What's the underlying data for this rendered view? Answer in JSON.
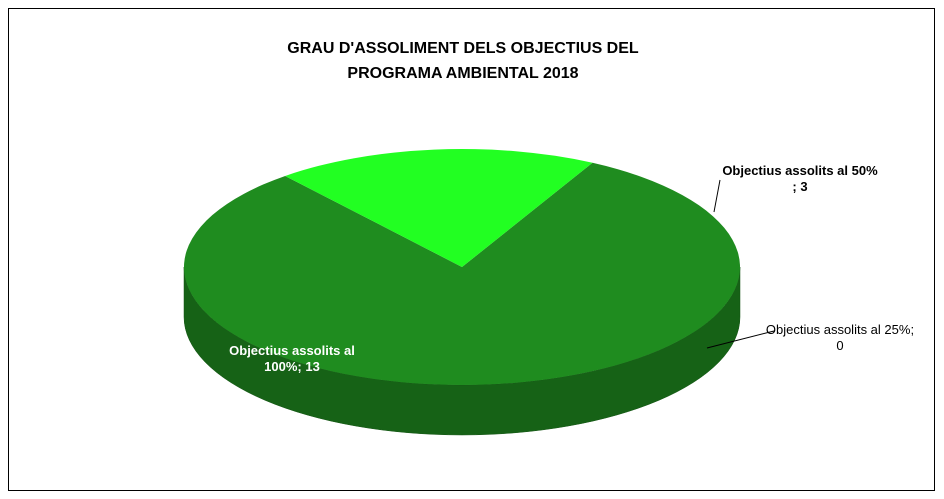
{
  "chart_data": {
    "type": "pie3d",
    "title": "GRAU D'ASSOLIMENT DELS OBJECTIUS DEL PROGRAMA AMBIENTAL 2018",
    "categories": [
      "Objectius assolits al 100%",
      "Objectius assolits al 50%",
      "Objectius assolits al 25%"
    ],
    "values": [
      13,
      3,
      0
    ],
    "value_labels": [
      "; 13",
      " ; 3",
      "; 0"
    ],
    "colors": [
      "#1f8c1f",
      "#22ff22",
      "#0a5a0a"
    ]
  }
}
